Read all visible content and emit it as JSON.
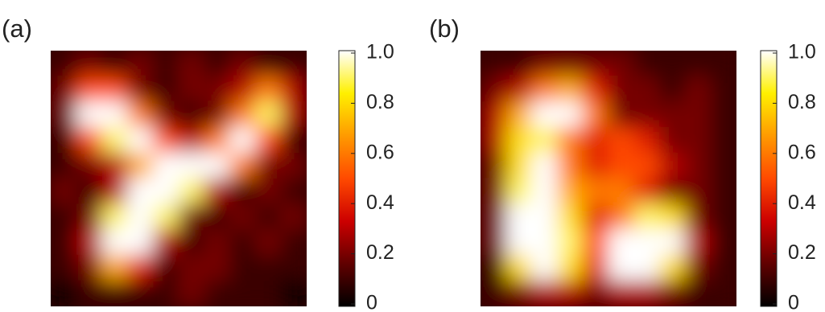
{
  "chart_data": [
    {
      "type": "heatmap",
      "label": "(a)",
      "values": [
        [
          0.1,
          0.2,
          0.1,
          0.2,
          0.1,
          0.2,
          0.1,
          0.2,
          0.1,
          0.1
        ],
        [
          0.2,
          0.5,
          0.5,
          0.2,
          0.1,
          0.2,
          0.2,
          0.3,
          0.6,
          0.3
        ],
        [
          0.2,
          1,
          1,
          0.6,
          0.2,
          0.1,
          0.2,
          0.6,
          0.9,
          0.3
        ],
        [
          0.1,
          0.5,
          0.9,
          1,
          0.5,
          0.3,
          0.6,
          1,
          0.5,
          0.1
        ],
        [
          0.1,
          0.2,
          0.3,
          0.7,
          1,
          1,
          1,
          0.6,
          0.2,
          0.2
        ],
        [
          0.2,
          0.1,
          0.3,
          1,
          1,
          0.9,
          0.3,
          0.1,
          0.2,
          0.1
        ],
        [
          0.1,
          0.2,
          0.9,
          1,
          0.9,
          0.2,
          0.1,
          0.2,
          0.1,
          0.2
        ],
        [
          0.1,
          0.3,
          1,
          1,
          0.3,
          0.1,
          0.2,
          0.1,
          0.2,
          0.1
        ],
        [
          0.1,
          0.2,
          0.7,
          0.4,
          0.1,
          0.2,
          0.2,
          0.1,
          0.1,
          0.1
        ],
        [
          0,
          0.1,
          0.1,
          0.1,
          0.1,
          0.2,
          0.1,
          0.1,
          0.1,
          0
        ]
      ],
      "clim": [
        0,
        1
      ],
      "cticks": [
        0,
        0.2,
        0.4,
        0.6,
        0.8,
        {
          "value": 1,
          "label": "1.0"
        }
      ],
      "colorscale": [
        "#000000",
        "#600000",
        "#cc0000",
        "#ff4a00",
        "#ff9a00",
        "#fff000",
        "#ffffff"
      ]
    },
    {
      "type": "heatmap",
      "label": "(b)",
      "values": [
        [
          0.1,
          0.1,
          0.2,
          0.2,
          0.2,
          0.2,
          0.1,
          0.1,
          0.1,
          0.1
        ],
        [
          0.2,
          0.3,
          0.6,
          0.7,
          0.4,
          0.2,
          0.2,
          0.1,
          0.2,
          0.1
        ],
        [
          0.3,
          0.7,
          1,
          1,
          0.6,
          0.2,
          0.2,
          0.2,
          0.2,
          0.1
        ],
        [
          0.3,
          0.8,
          0.9,
          0.6,
          0.4,
          0.5,
          0.4,
          0.2,
          0.2,
          0.1
        ],
        [
          0.2,
          0.8,
          1,
          0.6,
          0.4,
          0.5,
          0.5,
          0.3,
          0.2,
          0.1
        ],
        [
          0.2,
          0.9,
          1,
          0.7,
          0.6,
          0.6,
          0.4,
          0.2,
          0.2,
          0.1
        ],
        [
          0.2,
          1,
          1,
          0.8,
          0.4,
          0.6,
          0.9,
          0.8,
          0.2,
          0.1
        ],
        [
          0.2,
          1,
          1,
          0.9,
          0.5,
          1,
          1,
          1,
          0.3,
          0.1
        ],
        [
          0.1,
          0.8,
          1,
          0.8,
          0.4,
          1,
          1,
          0.8,
          0.2,
          0.1
        ],
        [
          0.1,
          0.2,
          0.3,
          0.3,
          0.2,
          0.3,
          0.3,
          0.2,
          0.1,
          0.1
        ]
      ],
      "clim": [
        0,
        1
      ],
      "cticks": [
        0,
        0.2,
        0.4,
        0.6,
        0.8,
        {
          "value": 1,
          "label": "1.0"
        }
      ],
      "colorscale": [
        "#000000",
        "#600000",
        "#cc0000",
        "#ff4a00",
        "#ff9a00",
        "#fff000",
        "#ffffff"
      ]
    }
  ]
}
